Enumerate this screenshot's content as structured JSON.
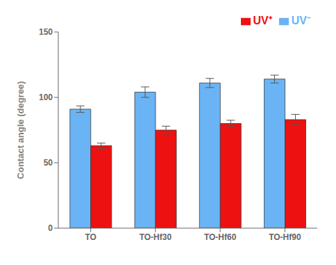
{
  "chart_data": {
    "type": "bar",
    "categories": [
      "TO",
      "TO-Hf30",
      "TO-Hf60",
      "TO-Hf90"
    ],
    "series": [
      {
        "name": "UV⁻",
        "color": "#6ab4f5",
        "values": [
          91,
          104,
          111,
          114
        ],
        "errors": [
          2.5,
          4,
          3.5,
          3
        ]
      },
      {
        "name": "UV⁺",
        "color": "#ee1111",
        "values": [
          63,
          75,
          80,
          83
        ],
        "errors": [
          2,
          3,
          2.5,
          4
        ]
      }
    ],
    "ylabel": "Contact angle (degree)",
    "ylim": [
      0,
      150
    ],
    "yticks": [
      0,
      50,
      100,
      150
    ],
    "grid": false,
    "legend": "upper right"
  }
}
